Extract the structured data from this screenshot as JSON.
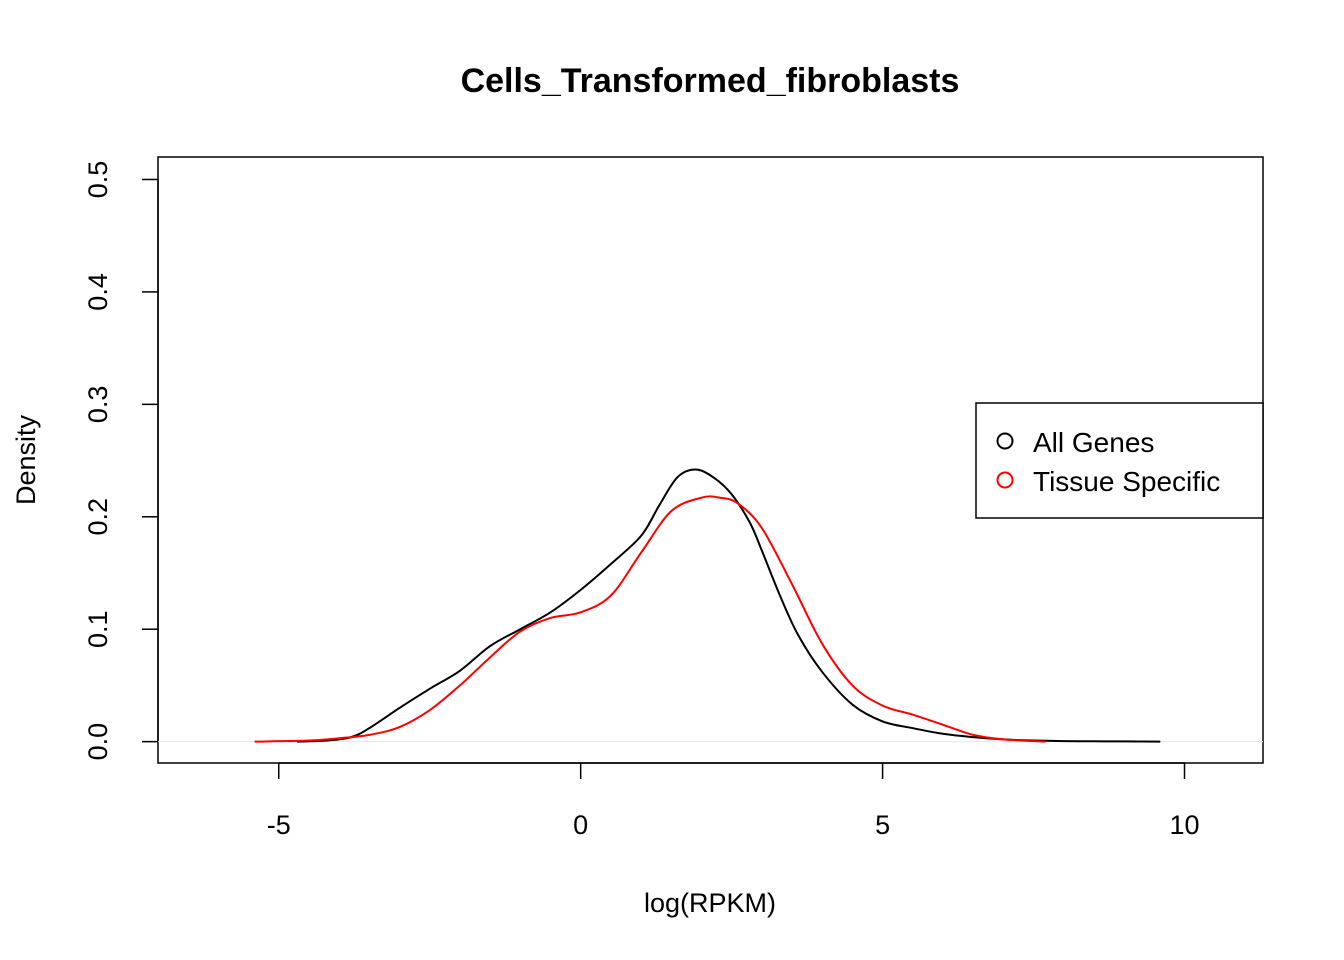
{
  "chart_data": {
    "type": "line",
    "title": "Cells_Transformed_fibroblasts",
    "xlabel": "log(RPKM)",
    "ylabel": "Density",
    "xlim": [
      -7,
      11.3
    ],
    "ylim": [
      -0.019,
      0.52
    ],
    "x_ticks": [
      -5,
      0,
      5,
      10
    ],
    "x_tick_labels": [
      "-5",
      "0",
      "5",
      "10"
    ],
    "y_ticks": [
      0.0,
      0.1,
      0.2,
      0.3,
      0.4,
      0.5
    ],
    "y_tick_labels": [
      "0.0",
      "0.1",
      "0.2",
      "0.3",
      "0.4",
      "0.5"
    ],
    "grid": false,
    "legend_position": "right",
    "series": [
      {
        "name": "All Genes",
        "color": "#000000",
        "x": [
          -4.7,
          -4.2,
          -3.8,
          -3.5,
          -3.0,
          -2.5,
          -2.0,
          -1.5,
          -1.0,
          -0.5,
          0.0,
          0.5,
          1.0,
          1.3,
          1.6,
          1.9,
          2.2,
          2.5,
          2.8,
          3.0,
          3.3,
          3.6,
          4.0,
          4.5,
          5.0,
          5.5,
          6.0,
          6.5,
          7.0,
          7.5,
          8.0,
          8.5,
          9.0,
          9.6
        ],
        "y": [
          0.0,
          0.001,
          0.004,
          0.012,
          0.03,
          0.047,
          0.063,
          0.085,
          0.1,
          0.115,
          0.135,
          0.158,
          0.183,
          0.21,
          0.235,
          0.242,
          0.235,
          0.22,
          0.195,
          0.17,
          0.13,
          0.095,
          0.062,
          0.033,
          0.018,
          0.012,
          0.007,
          0.004,
          0.002,
          0.001,
          0.0005,
          0.0003,
          0.0002,
          0.0
        ]
      },
      {
        "name": "Tissue Specific",
        "color": "#ff0000",
        "x": [
          -5.4,
          -4.5,
          -4.0,
          -3.5,
          -3.0,
          -2.5,
          -2.0,
          -1.5,
          -1.0,
          -0.5,
          0.0,
          0.5,
          1.0,
          1.5,
          2.0,
          2.3,
          2.6,
          3.0,
          3.5,
          4.0,
          4.5,
          5.0,
          5.5,
          6.0,
          6.5,
          7.0,
          7.7
        ],
        "y": [
          0.0,
          0.001,
          0.003,
          0.006,
          0.013,
          0.028,
          0.05,
          0.075,
          0.098,
          0.11,
          0.115,
          0.13,
          0.168,
          0.205,
          0.217,
          0.217,
          0.212,
          0.19,
          0.14,
          0.087,
          0.05,
          0.032,
          0.024,
          0.015,
          0.006,
          0.002,
          0.0
        ]
      }
    ]
  }
}
